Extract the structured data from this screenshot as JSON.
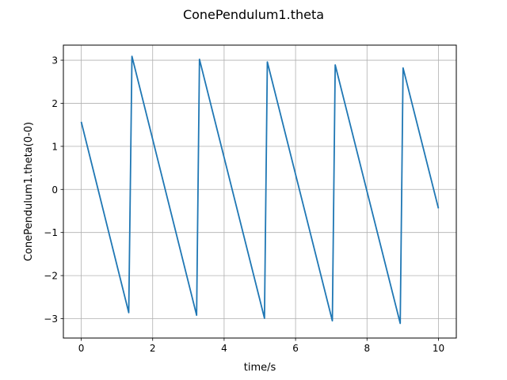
{
  "chart_data": {
    "type": "line",
    "title": "ConePendulum1.theta",
    "xlabel": "time/s",
    "ylabel": "ConePendulum1.theta(0-0)",
    "xlim": [
      -0.5,
      10.5
    ],
    "ylim": [
      -3.45,
      3.35
    ],
    "xticks": [
      0,
      2,
      4,
      6,
      8,
      10
    ],
    "xtick_labels": [
      "0",
      "2",
      "4",
      "6",
      "8",
      "10"
    ],
    "yticks": [
      -3,
      -2,
      -1,
      0,
      1,
      2,
      3
    ],
    "ytick_labels": [
      "−3",
      "−2",
      "−1",
      "0",
      "1",
      "2",
      "3"
    ],
    "grid": true,
    "series": [
      {
        "color": "#1f77b4",
        "x": [
          0,
          1.33,
          1.42,
          3.23,
          3.31,
          5.13,
          5.21,
          7.03,
          7.11,
          8.93,
          9.01,
          10.0
        ],
        "y": [
          1.57,
          -2.86,
          3.09,
          -2.92,
          3.02,
          -2.99,
          2.96,
          -3.05,
          2.89,
          -3.11,
          2.82,
          -0.44
        ]
      }
    ]
  }
}
